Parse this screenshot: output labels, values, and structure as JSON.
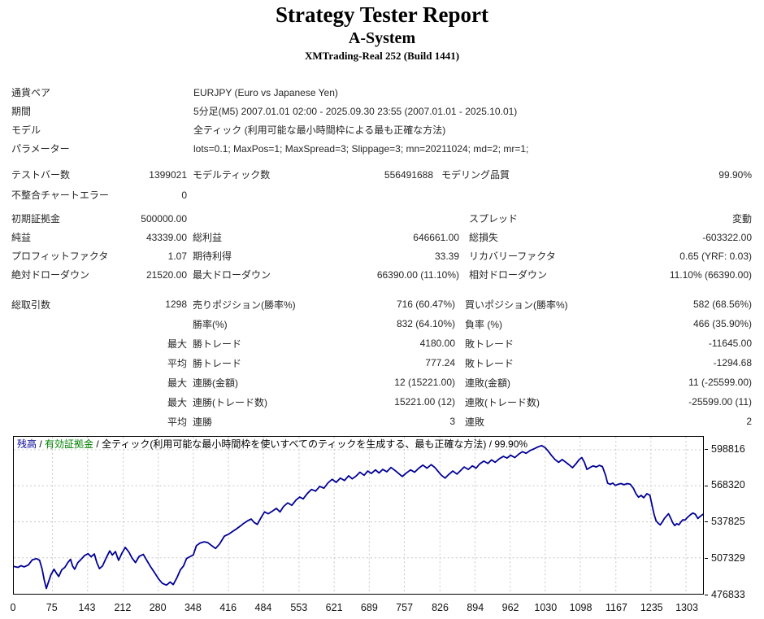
{
  "header": {
    "title": "Strategy Tester Report",
    "ea_name": "A-System",
    "broker": "XMTrading-Real 252 (Build 1441)"
  },
  "tables": {
    "info": {
      "rows": [
        [
          "通貨ペア",
          "EURJPY (Euro vs Japanese Yen)"
        ],
        [
          "期間",
          "5分足(M5) 2007.01.01 02:00 - 2025.09.30 23:55 (2007.01.01 - 2025.10.01)"
        ],
        [
          "モデル",
          "全ティック (利用可能な最小時間枠による最も正確な方法)"
        ],
        [
          "パラメーター",
          "lots=0.1; MaxPos=1; MaxSpread=3; Slippage=3; mn=20211024; md=2; mr=1;"
        ]
      ]
    },
    "test": {
      "rows": [
        [
          "テストバー数",
          "1399021",
          "モデルティック数",
          "556491688",
          "モデリング品質",
          "99.90%"
        ],
        [
          "不整合チャートエラー",
          "0",
          "",
          "",
          "",
          ""
        ]
      ]
    },
    "results": {
      "rows": [
        [
          "初期証拠金",
          "500000.00",
          "",
          "",
          "スプレッド",
          "変動"
        ],
        [
          "純益",
          "43339.00",
          "総利益",
          "646661.00",
          "総損失",
          "-603322.00"
        ],
        [
          "プロフィットファクタ",
          "1.07",
          "期待利得",
          "33.39",
          "リカバリーファクタ",
          "0.65 (YRF: 0.03)"
        ],
        [
          "絶対ドローダウン",
          "21520.00",
          "最大ドローダウン",
          "66390.00 (11.10%)",
          "相対ドローダウン",
          "11.10% (66390.00)"
        ]
      ]
    },
    "trades": {
      "rows": [
        [
          "総取引数",
          "1298",
          "売りポジション(勝率%)",
          "716 (60.47%)",
          "買いポジション(勝率%)",
          "582 (68.56%)"
        ],
        [
          "",
          "",
          "勝率(%)",
          "832 (64.10%)",
          "負率 (%)",
          "466 (35.90%)"
        ],
        [
          "",
          "最大",
          "勝トレード",
          "4180.00",
          "敗トレード",
          "-11645.00"
        ],
        [
          "",
          "平均",
          "勝トレード",
          "777.24",
          "敗トレード",
          "-1294.68"
        ],
        [
          "",
          "最大",
          "連勝(金額)",
          "12 (15221.00)",
          "連敗(金額)",
          "11 (-25599.00)"
        ],
        [
          "",
          "最大",
          "連勝(トレード数)",
          "15221.00 (12)",
          "連敗(トレード数)",
          "-25599.00 (11)"
        ],
        [
          "",
          "平均",
          "連勝",
          "3",
          "連敗",
          "2"
        ]
      ]
    }
  },
  "chart_data": {
    "type": "line",
    "caption": {
      "balance_label": "残高",
      "equity_label": "有効証拠金",
      "model_label": "全ティック(利用可能な最小時間枠を使いすべてのティックを生成する、最も正確な方法)",
      "quality_label": "99.90%",
      "separator": "/"
    },
    "colors": {
      "balance_line": "#000096",
      "equity_label": "#008000",
      "grid": "#c6c6c6"
    },
    "x_ticks": [
      0,
      75,
      143,
      212,
      280,
      348,
      416,
      484,
      553,
      621,
      689,
      757,
      826,
      894,
      962,
      1030,
      1098,
      1167,
      1235,
      1303
    ],
    "y_ticks": [
      598816,
      568320,
      537825,
      507329,
      476833
    ],
    "x_max": 1336,
    "y_axis_bottom": 476833,
    "y_axis_top": 609800,
    "xlabel": "",
    "ylabel": "",
    "legend_position": "top-left caption",
    "grid": "dotted",
    "series": [
      {
        "name": "残高 (balance)",
        "points": [
          [
            0,
            500000
          ],
          [
            8,
            499200
          ],
          [
            14,
            500600
          ],
          [
            20,
            499600
          ],
          [
            28,
            501200
          ],
          [
            36,
            505600
          ],
          [
            44,
            506600
          ],
          [
            50,
            505200
          ],
          [
            55,
            497500
          ],
          [
            59,
            488500
          ],
          [
            63,
            481300
          ],
          [
            67,
            486500
          ],
          [
            72,
            493000
          ],
          [
            78,
            497600
          ],
          [
            83,
            494000
          ],
          [
            87,
            491500
          ],
          [
            93,
            497200
          ],
          [
            99,
            499300
          ],
          [
            105,
            503500
          ],
          [
            110,
            506000
          ],
          [
            114,
            500200
          ],
          [
            118,
            497600
          ],
          [
            124,
            503200
          ],
          [
            130,
            505800
          ],
          [
            137,
            509200
          ],
          [
            144,
            510800
          ],
          [
            150,
            508200
          ],
          [
            156,
            510600
          ],
          [
            161,
            503200
          ],
          [
            166,
            498200
          ],
          [
            172,
            500400
          ],
          [
            179,
            507200
          ],
          [
            186,
            513200
          ],
          [
            191,
            509600
          ],
          [
            197,
            512600
          ],
          [
            203,
            505200
          ],
          [
            209,
            510800
          ],
          [
            216,
            516200
          ],
          [
            223,
            512200
          ],
          [
            229,
            507200
          ],
          [
            236,
            503200
          ],
          [
            243,
            508600
          ],
          [
            251,
            510200
          ],
          [
            259,
            504200
          ],
          [
            266,
            499200
          ],
          [
            273,
            494600
          ],
          [
            281,
            489200
          ],
          [
            288,
            485600
          ],
          [
            296,
            484200
          ],
          [
            303,
            486800
          ],
          [
            309,
            484600
          ],
          [
            316,
            490200
          ],
          [
            323,
            497200
          ],
          [
            329,
            500400
          ],
          [
            335,
            506800
          ],
          [
            341,
            508200
          ],
          [
            348,
            509800
          ],
          [
            354,
            517600
          ],
          [
            361,
            519800
          ],
          [
            369,
            520800
          ],
          [
            376,
            520200
          ],
          [
            383,
            517800
          ],
          [
            391,
            515200
          ],
          [
            399,
            519200
          ],
          [
            408,
            525600
          ],
          [
            416,
            527200
          ],
          [
            424,
            529600
          ],
          [
            431,
            531600
          ],
          [
            439,
            534200
          ],
          [
            446,
            536600
          ],
          [
            453,
            538600
          ],
          [
            460,
            540200
          ],
          [
            466,
            537200
          ],
          [
            472,
            535600
          ],
          [
            479,
            541200
          ],
          [
            486,
            546200
          ],
          [
            493,
            544600
          ],
          [
            501,
            546800
          ],
          [
            509,
            549200
          ],
          [
            516,
            546200
          ],
          [
            523,
            550800
          ],
          [
            531,
            553800
          ],
          [
            539,
            551800
          ],
          [
            547,
            556200
          ],
          [
            554,
            558800
          ],
          [
            561,
            557200
          ],
          [
            569,
            561800
          ],
          [
            577,
            565200
          ],
          [
            585,
            563800
          ],
          [
            593,
            567800
          ],
          [
            601,
            566200
          ],
          [
            609,
            570800
          ],
          [
            617,
            573800
          ],
          [
            625,
            571200
          ],
          [
            633,
            574800
          ],
          [
            641,
            572800
          ],
          [
            649,
            576800
          ],
          [
            656,
            574200
          ],
          [
            664,
            576800
          ],
          [
            671,
            579800
          ],
          [
            679,
            577200
          ],
          [
            686,
            580800
          ],
          [
            693,
            578800
          ],
          [
            701,
            581800
          ],
          [
            708,
            579200
          ],
          [
            715,
            582200
          ],
          [
            723,
            580200
          ],
          [
            731,
            583800
          ],
          [
            739,
            581200
          ],
          [
            746,
            578800
          ],
          [
            753,
            576200
          ],
          [
            761,
            579200
          ],
          [
            769,
            581800
          ],
          [
            777,
            579800
          ],
          [
            785,
            583200
          ],
          [
            793,
            585800
          ],
          [
            801,
            583200
          ],
          [
            809,
            586200
          ],
          [
            816,
            583800
          ],
          [
            823,
            580200
          ],
          [
            829,
            577200
          ],
          [
            836,
            574800
          ],
          [
            843,
            577800
          ],
          [
            851,
            580800
          ],
          [
            859,
            578200
          ],
          [
            866,
            581200
          ],
          [
            873,
            584200
          ],
          [
            881,
            582200
          ],
          [
            889,
            585200
          ],
          [
            896,
            583200
          ],
          [
            903,
            586800
          ],
          [
            911,
            589200
          ],
          [
            919,
            587200
          ],
          [
            926,
            590200
          ],
          [
            933,
            588200
          ],
          [
            941,
            591200
          ],
          [
            949,
            593200
          ],
          [
            956,
            591800
          ],
          [
            963,
            594200
          ],
          [
            971,
            592200
          ],
          [
            979,
            595200
          ],
          [
            986,
            597200
          ],
          [
            993,
            595800
          ],
          [
            1001,
            598200
          ],
          [
            1009,
            599800
          ],
          [
            1016,
            601200
          ],
          [
            1023,
            602400
          ],
          [
            1030,
            600600
          ],
          [
            1036,
            597600
          ],
          [
            1042,
            594200
          ],
          [
            1049,
            590600
          ],
          [
            1056,
            588200
          ],
          [
            1063,
            590600
          ],
          [
            1069,
            588600
          ],
          [
            1076,
            586200
          ],
          [
            1083,
            583600
          ],
          [
            1089,
            586600
          ],
          [
            1096,
            590600
          ],
          [
            1101,
            592200
          ],
          [
            1106,
            588200
          ],
          [
            1111,
            582200
          ],
          [
            1117,
            583800
          ],
          [
            1123,
            585200
          ],
          [
            1129,
            584200
          ],
          [
            1135,
            585600
          ],
          [
            1141,
            584600
          ],
          [
            1147,
            577200
          ],
          [
            1151,
            570600
          ],
          [
            1156,
            569600
          ],
          [
            1161,
            570600
          ],
          [
            1166,
            568600
          ],
          [
            1171,
            569600
          ],
          [
            1177,
            570200
          ],
          [
            1183,
            569200
          ],
          [
            1189,
            570200
          ],
          [
            1195,
            569600
          ],
          [
            1201,
            566200
          ],
          [
            1206,
            561600
          ],
          [
            1211,
            558600
          ],
          [
            1216,
            560200
          ],
          [
            1221,
            558200
          ],
          [
            1227,
            561600
          ],
          [
            1233,
            560200
          ],
          [
            1237,
            552200
          ],
          [
            1241,
            544200
          ],
          [
            1245,
            538600
          ],
          [
            1249,
            536600
          ],
          [
            1253,
            535200
          ],
          [
            1257,
            537600
          ],
          [
            1261,
            540600
          ],
          [
            1265,
            542600
          ],
          [
            1269,
            544600
          ],
          [
            1273,
            541200
          ],
          [
            1277,
            537200
          ],
          [
            1281,
            534600
          ],
          [
            1285,
            536200
          ],
          [
            1289,
            535200
          ],
          [
            1293,
            537600
          ],
          [
            1297,
            539600
          ],
          [
            1301,
            539200
          ],
          [
            1306,
            541600
          ],
          [
            1311,
            543600
          ],
          [
            1316,
            545200
          ],
          [
            1321,
            544200
          ],
          [
            1326,
            540600
          ],
          [
            1331,
            542600
          ],
          [
            1336,
            544200
          ],
          [
            1340,
            543339
          ]
        ]
      }
    ]
  }
}
